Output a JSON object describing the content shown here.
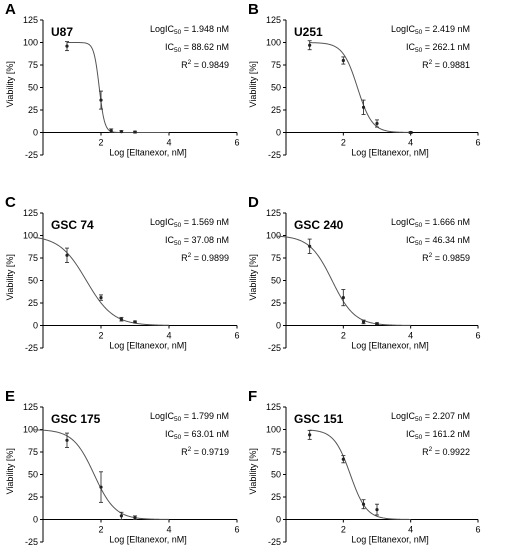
{
  "chart_data": [
    {
      "type": "line",
      "panel": "A",
      "title": "U87",
      "xlabel": "Log [Eltanexor, nM]",
      "ylabel": "Viability [%]",
      "xlim": [
        0,
        6
      ],
      "ylim": [
        -25,
        125
      ],
      "xticks": [
        0,
        2,
        4,
        6
      ],
      "yticks": [
        -25,
        0,
        25,
        50,
        75,
        100,
        125
      ],
      "grid": false,
      "stats": {
        "logic50": "LogIC",
        "logic50_value": " = 1.948 nM",
        "ic50": "IC",
        "ic50_value": " = 88.62 nM",
        "r2": "R",
        "r2_value": " = 0.9849",
        "sub": "50",
        "sup": "2"
      },
      "fit": {
        "logIC50": 1.948,
        "hill": 5.5,
        "top": 100,
        "bottom": 0
      },
      "points": [
        {
          "x": 1.0,
          "y": 96,
          "err": 5
        },
        {
          "x": 2.0,
          "y": 36,
          "err": 10
        },
        {
          "x": 2.3,
          "y": 2,
          "err": 2
        },
        {
          "x": 2.6,
          "y": 1,
          "err": 1
        },
        {
          "x": 3.0,
          "y": 0.5,
          "err": 1
        }
      ]
    },
    {
      "type": "line",
      "panel": "B",
      "title": "U251",
      "xlabel": "Log [Eltanexor, nM]",
      "ylabel": "Viability [%]",
      "xlim": [
        0,
        6
      ],
      "ylim": [
        -25,
        125
      ],
      "xticks": [
        0,
        2,
        4,
        6
      ],
      "yticks": [
        -25,
        0,
        25,
        50,
        75,
        100,
        125
      ],
      "grid": false,
      "stats": {
        "logic50": "LogIC",
        "logic50_value": " = 2.419 nM",
        "ic50": "IC",
        "ic50_value": " = 262.1 nM",
        "r2": "R",
        "r2_value": " = 0.9881",
        "sub": "50",
        "sup": "2"
      },
      "fit": {
        "logIC50": 2.419,
        "hill": 2.0,
        "top": 100,
        "bottom": 0
      },
      "points": [
        {
          "x": 1.0,
          "y": 97,
          "err": 5
        },
        {
          "x": 2.0,
          "y": 80,
          "err": 4
        },
        {
          "x": 2.6,
          "y": 28,
          "err": 8
        },
        {
          "x": 3.0,
          "y": 10,
          "err": 4
        },
        {
          "x": 4.0,
          "y": 0,
          "err": 1
        }
      ]
    },
    {
      "type": "line",
      "panel": "C",
      "title": "GSC 74",
      "xlabel": "Log [Eltanexor, nM]",
      "ylabel": "Viability [%]",
      "xlim": [
        0,
        6
      ],
      "ylim": [
        -25,
        125
      ],
      "xticks": [
        0,
        2,
        4,
        6
      ],
      "yticks": [
        -25,
        0,
        25,
        50,
        75,
        100,
        125
      ],
      "grid": false,
      "stats": {
        "logic50": "LogIC",
        "logic50_value": " = 1.569 nM",
        "ic50": "IC",
        "ic50_value": " = 37.08 nM",
        "r2": "R",
        "r2_value": " = 0.9899",
        "sub": "50",
        "sup": "2"
      },
      "fit": {
        "logIC50": 1.569,
        "hill": 1.1,
        "top": 100,
        "bottom": 0
      },
      "points": [
        {
          "x": 1.0,
          "y": 78,
          "err": 8
        },
        {
          "x": 2.0,
          "y": 31,
          "err": 3
        },
        {
          "x": 2.6,
          "y": 7,
          "err": 2
        },
        {
          "x": 3.0,
          "y": 4,
          "err": 1
        }
      ]
    },
    {
      "type": "line",
      "panel": "D",
      "title": "GSC 240",
      "xlabel": "Log [Eltanexor, nM]",
      "ylabel": "Viability [%]",
      "xlim": [
        0,
        6
      ],
      "ylim": [
        -25,
        125
      ],
      "xticks": [
        0,
        2,
        4,
        6
      ],
      "yticks": [
        -25,
        0,
        25,
        50,
        75,
        100,
        125
      ],
      "grid": false,
      "stats": {
        "logic50": "LogIC",
        "logic50_value": " = 1.666 nM",
        "ic50": "IC",
        "ic50_value": " = 46.34 nM",
        "r2": "R",
        "r2_value": " = 0.9859",
        "sub": "50",
        "sup": "2"
      },
      "fit": {
        "logIC50": 1.666,
        "hill": 1.3,
        "top": 100,
        "bottom": 0
      },
      "points": [
        {
          "x": 1.0,
          "y": 88,
          "err": 8
        },
        {
          "x": 2.0,
          "y": 31,
          "err": 9
        },
        {
          "x": 2.6,
          "y": 4,
          "err": 2
        },
        {
          "x": 3.0,
          "y": 2,
          "err": 1
        }
      ]
    },
    {
      "type": "line",
      "panel": "E",
      "title": "GSC 175",
      "xlabel": "Log [Eltanexor, nM]",
      "ylabel": "Viability [%]",
      "xlim": [
        0,
        6
      ],
      "ylim": [
        -25,
        125
      ],
      "xticks": [
        0,
        2,
        4,
        6
      ],
      "yticks": [
        -25,
        0,
        25,
        50,
        75,
        100,
        125
      ],
      "grid": false,
      "stats": {
        "logic50": "LogIC",
        "logic50_value": " = 1.799 nM",
        "ic50": "IC",
        "ic50_value": " = 63.01 nM",
        "r2": "R",
        "r2_value": " = 0.9719",
        "sub": "50",
        "sup": "2"
      },
      "fit": {
        "logIC50": 1.799,
        "hill": 1.4,
        "top": 100,
        "bottom": 0
      },
      "points": [
        {
          "x": 1.0,
          "y": 88,
          "err": 8
        },
        {
          "x": 2.0,
          "y": 36,
          "err": 17
        },
        {
          "x": 2.6,
          "y": 4,
          "err": 4
        },
        {
          "x": 3.0,
          "y": 2,
          "err": 2
        }
      ]
    },
    {
      "type": "line",
      "panel": "F",
      "title": "GSC 151",
      "xlabel": "Log [Eltanexor, nM]",
      "ylabel": "Viability [%]",
      "xlim": [
        0,
        6
      ],
      "ylim": [
        -25,
        125
      ],
      "xticks": [
        0,
        2,
        4,
        6
      ],
      "yticks": [
        -25,
        0,
        25,
        50,
        75,
        100,
        125
      ],
      "grid": false,
      "stats": {
        "logic50": "LogIC",
        "logic50_value": " = 2.207 nM",
        "ic50": "IC",
        "ic50_value": " = 161.2 nM",
        "r2": "R",
        "r2_value": " = 0.9922",
        "sub": "50",
        "sup": "2"
      },
      "fit": {
        "logIC50": 2.207,
        "hill": 1.8,
        "top": 100,
        "bottom": 0
      },
      "points": [
        {
          "x": 1.0,
          "y": 94,
          "err": 5
        },
        {
          "x": 2.0,
          "y": 67,
          "err": 4
        },
        {
          "x": 2.6,
          "y": 17,
          "err": 5
        },
        {
          "x": 3.0,
          "y": 11,
          "err": 6
        }
      ]
    }
  ]
}
